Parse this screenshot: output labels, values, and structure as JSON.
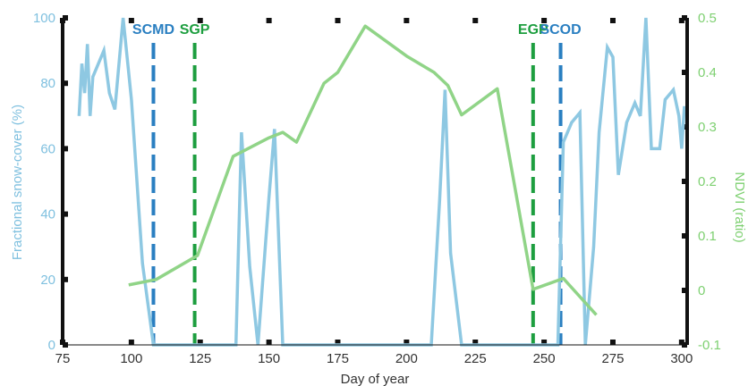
{
  "chart_data": {
    "type": "line",
    "xlabel": "Day of year",
    "ylabel_left": "Fractional snow-cover (%)",
    "ylabel_right": "NDVI (ratio)",
    "xlim": [
      75,
      302
    ],
    "ylim_left": [
      0,
      100
    ],
    "ylim_right": [
      -0.1,
      0.5
    ],
    "x_ticks": [
      "75",
      "100",
      "125",
      "150",
      "175",
      "200",
      "225",
      "250",
      "275",
      "300"
    ],
    "y_left_ticks": [
      "0",
      "20",
      "40",
      "60",
      "80",
      "100"
    ],
    "y_right_ticks": [
      "-0.1",
      "0",
      "0.1",
      "0.2",
      "0.3",
      "0.4",
      "0.5"
    ],
    "grid": false,
    "colors": {
      "snow": "#8ec8e2",
      "ndvi": "#90d487",
      "scmd": "#2a7fc1",
      "sgp": "#1d9e3f",
      "left_axis": "#7fc0df",
      "right_axis": "#7ed071"
    },
    "series": [
      {
        "axis": "left",
        "x": [
          81,
          82,
          83,
          84,
          85,
          86,
          87,
          90,
          92,
          94,
          97,
          100,
          104,
          108,
          135,
          138,
          140,
          143,
          146,
          150,
          152,
          155,
          160,
          205,
          209,
          212,
          214,
          216,
          220,
          255,
          257,
          260,
          263,
          265,
          268,
          270,
          273,
          275,
          277,
          280,
          283,
          285,
          287,
          289,
          292,
          294,
          297,
          299,
          300,
          301
        ],
        "y": [
          70,
          86,
          77,
          92,
          70,
          82,
          84,
          90,
          77,
          72,
          100,
          75,
          25,
          0,
          0,
          0,
          65,
          24,
          0,
          45,
          66,
          0,
          0,
          0,
          0,
          44,
          78,
          28,
          0,
          0,
          62,
          68,
          71,
          0,
          30,
          65,
          91,
          88,
          52,
          68,
          74,
          70,
          100,
          60,
          60,
          75,
          78,
          70,
          60,
          73
        ]
      },
      {
        "axis": "right",
        "x": [
          99,
          109,
          124,
          137,
          150,
          155,
          160,
          170,
          175,
          185,
          200,
          210,
          215,
          220,
          233,
          246,
          257,
          269
        ],
        "y": [
          0.01,
          0.02,
          0.064,
          0.246,
          0.28,
          0.29,
          0.272,
          0.38,
          0.4,
          0.485,
          0.43,
          0.4,
          0.376,
          0.322,
          0.37,
          0.002,
          0.022,
          -0.045
        ]
      }
    ],
    "markers": [
      {
        "label": "SCMD",
        "x": 108,
        "color": "#2a7fc1"
      },
      {
        "label": "SGP",
        "x": 123,
        "color": "#1d9e3f"
      },
      {
        "label": "EGP",
        "x": 246,
        "color": "#1d9e3f"
      },
      {
        "label": "SCOD",
        "x": 256,
        "color": "#2a7fc1"
      }
    ]
  }
}
